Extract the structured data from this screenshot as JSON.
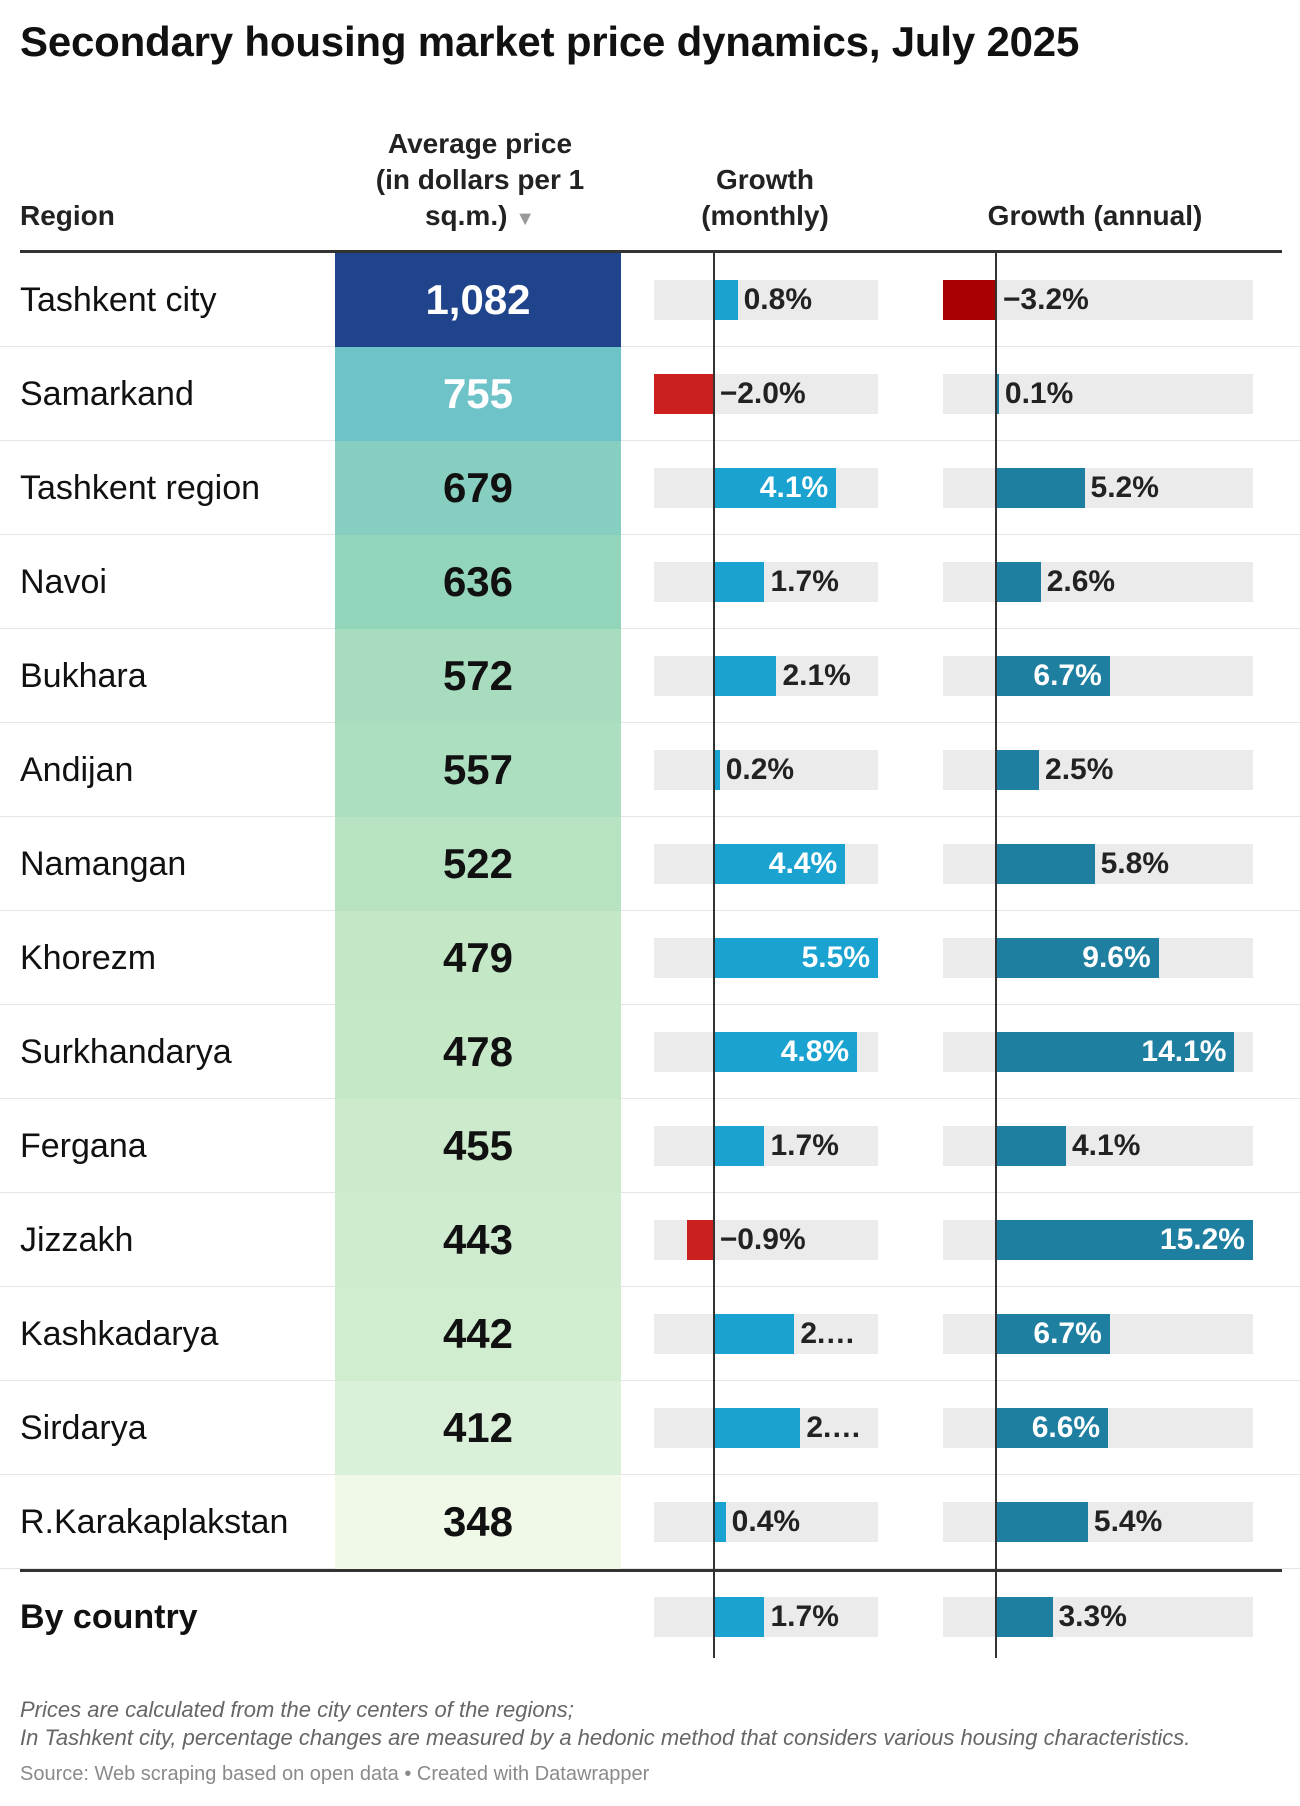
{
  "title": "Secondary housing market price dynamics, July 2025",
  "headers": {
    "region": "Region",
    "price_line1": "Average price",
    "price_line2": "(in dollars per 1",
    "price_line3": "sq.m.)",
    "sort_icon": "▼",
    "monthly_line1": "Growth",
    "monthly_line2": "(monthly)",
    "annual": "Growth (annual)"
  },
  "colors": {
    "positive_monthly": "#1aa3d1",
    "negative_monthly": "#cc1f1f",
    "positive_annual": "#1f7fa0",
    "negative_annual": "#a80000",
    "track": "#ebebeb"
  },
  "chart_data": {
    "type": "table",
    "columns": [
      "Region",
      "Average price (in dollars per 1 sq.m.)",
      "Growth (monthly)",
      "Growth (annual)"
    ],
    "rows": [
      {
        "region": "Tashkent city",
        "price": "1,082",
        "price_value": 1082,
        "monthly": 0.8,
        "monthly_label": "0.8%",
        "annual": -3.2,
        "annual_label": "−3.2%"
      },
      {
        "region": "Samarkand",
        "price": "755",
        "price_value": 755,
        "monthly": -2.0,
        "monthly_label": "−2.0%",
        "annual": 0.1,
        "annual_label": "0.1%"
      },
      {
        "region": "Tashkent region",
        "price": "679",
        "price_value": 679,
        "monthly": 4.1,
        "monthly_label": "4.1%",
        "annual": 5.2,
        "annual_label": "5.2%"
      },
      {
        "region": "Navoi",
        "price": "636",
        "price_value": 636,
        "monthly": 1.7,
        "monthly_label": "1.7%",
        "annual": 2.6,
        "annual_label": "2.6%"
      },
      {
        "region": "Bukhara",
        "price": "572",
        "price_value": 572,
        "monthly": 2.1,
        "monthly_label": "2.1%",
        "annual": 6.7,
        "annual_label": "6.7%"
      },
      {
        "region": "Andijan",
        "price": "557",
        "price_value": 557,
        "monthly": 0.2,
        "monthly_label": "0.2%",
        "annual": 2.5,
        "annual_label": "2.5%"
      },
      {
        "region": "Namangan",
        "price": "522",
        "price_value": 522,
        "monthly": 4.4,
        "monthly_label": "4.4%",
        "annual": 5.8,
        "annual_label": "5.8%"
      },
      {
        "region": "Khorezm",
        "price": "479",
        "price_value": 479,
        "monthly": 5.5,
        "monthly_label": "5.5%",
        "annual": 9.6,
        "annual_label": "9.6%"
      },
      {
        "region": "Surkhandarya",
        "price": "478",
        "price_value": 478,
        "monthly": 4.8,
        "monthly_label": "4.8%",
        "annual": 14.1,
        "annual_label": "14.1%"
      },
      {
        "region": "Fergana",
        "price": "455",
        "price_value": 455,
        "monthly": 1.7,
        "monthly_label": "1.7%",
        "annual": 4.1,
        "annual_label": "4.1%"
      },
      {
        "region": "Jizzakh",
        "price": "443",
        "price_value": 443,
        "monthly": -0.9,
        "monthly_label": "−0.9%",
        "annual": 15.2,
        "annual_label": "15.2%"
      },
      {
        "region": "Kashkadarya",
        "price": "442",
        "price_value": 442,
        "monthly": 2.7,
        "monthly_label": "2.…",
        "annual": 6.7,
        "annual_label": "6.7%"
      },
      {
        "region": "Sirdarya",
        "price": "412",
        "price_value": 412,
        "monthly": 2.9,
        "monthly_label": "2.…",
        "annual": 6.6,
        "annual_label": "6.6%"
      },
      {
        "region": "R.Karakaplakstan",
        "price": "348",
        "price_value": 348,
        "monthly": 0.4,
        "monthly_label": "0.4%",
        "annual": 5.4,
        "annual_label": "5.4%"
      }
    ],
    "total": {
      "region": "By country",
      "monthly": 1.7,
      "monthly_label": "1.7%",
      "annual": 3.3,
      "annual_label": "3.3%"
    },
    "monthly_range": [
      -2.0,
      5.5
    ],
    "annual_range": [
      -3.2,
      15.2
    ]
  },
  "notes": {
    "line1": "Prices are calculated from the city centers of the regions;",
    "line2": "In Tashkent city, percentage changes are measured by a hedonic method that considers various housing characteristics."
  },
  "source": "Source: Web scraping based on open data • Created with Datawrapper"
}
